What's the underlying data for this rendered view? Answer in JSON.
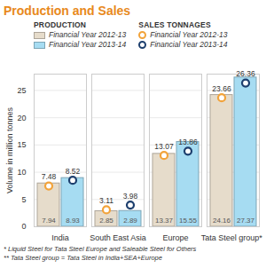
{
  "chart_data": {
    "type": "bar",
    "title": "Production and Sales",
    "y_label": "Volume in million tonnes",
    "categories": [
      "India",
      "South East Asia",
      "Europe",
      "Tata Steel group**"
    ],
    "series": [
      {
        "name": "Financial Year 2012-13",
        "group": "PRODUCTION",
        "type": "bar",
        "color": "#e6dccb",
        "values": [
          7.94,
          2.85,
          13.37,
          24.16
        ]
      },
      {
        "name": "Financial Year 2013-14",
        "group": "PRODUCTION",
        "type": "bar",
        "color": "#a6dcf2",
        "values": [
          8.93,
          2.89,
          15.55,
          27.37
        ]
      },
      {
        "name": "Financial Year 2012-13",
        "group": "SALES TONNAGES",
        "type": "scatter",
        "marker": "circle",
        "color": "#f2a33a",
        "values": [
          7.48,
          3.11,
          13.07,
          23.66
        ]
      },
      {
        "name": "Financial Year 2013-14",
        "group": "SALES TONNAGES",
        "type": "scatter",
        "marker": "circle",
        "color": "#1d3f6e",
        "values": [
          8.52,
          3.98,
          13.86,
          26.36
        ]
      }
    ],
    "ylim": [
      0,
      28
    ],
    "yticks": [
      0,
      5,
      10,
      15,
      20,
      25
    ],
    "grid": true,
    "data_labels": true,
    "notes": [
      "* Liquid Steel for Tata Steel Europe and Saleable Steel for Others",
      "** Tata Steel group = Tata Steel in India+SEA+Europe"
    ]
  }
}
